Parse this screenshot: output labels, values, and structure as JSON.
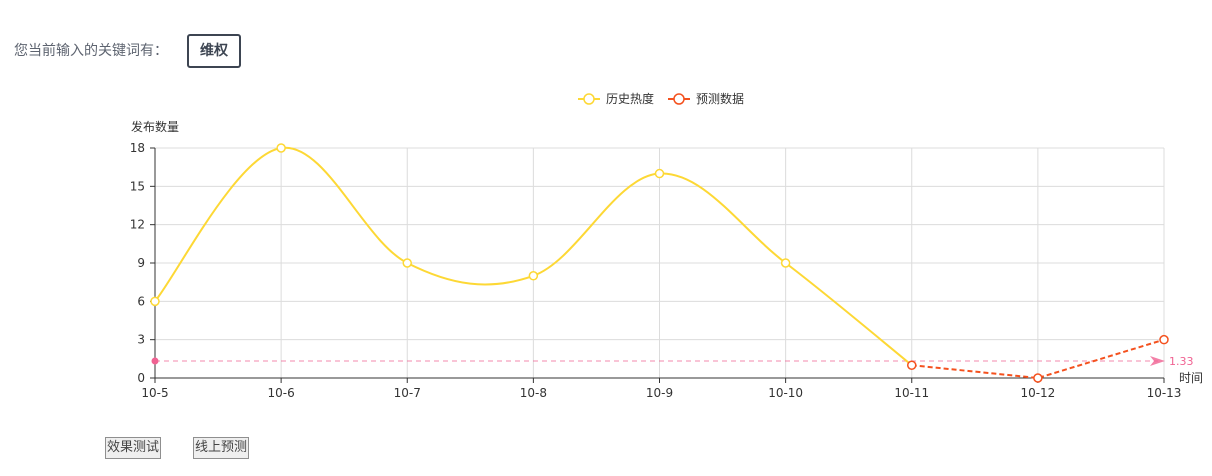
{
  "keyword_prompt": "您当前输入的关键词有：",
  "keyword": "维权",
  "buttons": {
    "test": "效果测试",
    "predict": "线上预测"
  },
  "colors": {
    "history": "#fdd835",
    "forecast": "#f4511e",
    "markline": "#f06292",
    "grid": "#dcdcdc",
    "axis": "#333333"
  },
  "chart_data": {
    "type": "line",
    "ylabel": "发布数量",
    "xlabel": "时间",
    "categories": [
      "10-5",
      "10-6",
      "10-7",
      "10-8",
      "10-9",
      "10-10",
      "10-11",
      "10-12",
      "10-13"
    ],
    "ylim": [
      0,
      18
    ],
    "yticks": [
      0,
      3,
      6,
      9,
      12,
      15,
      18
    ],
    "grid": true,
    "legend_position": "top-center",
    "series": [
      {
        "name": "历史热度",
        "values": [
          6,
          18,
          9,
          8,
          16,
          9,
          1,
          null,
          null
        ],
        "smooth": true
      },
      {
        "name": "预测数据",
        "values": [
          null,
          null,
          null,
          null,
          null,
          null,
          1,
          0,
          3
        ],
        "dashed": true
      }
    ],
    "markline": {
      "value": 1.33,
      "label": "1.33"
    }
  }
}
